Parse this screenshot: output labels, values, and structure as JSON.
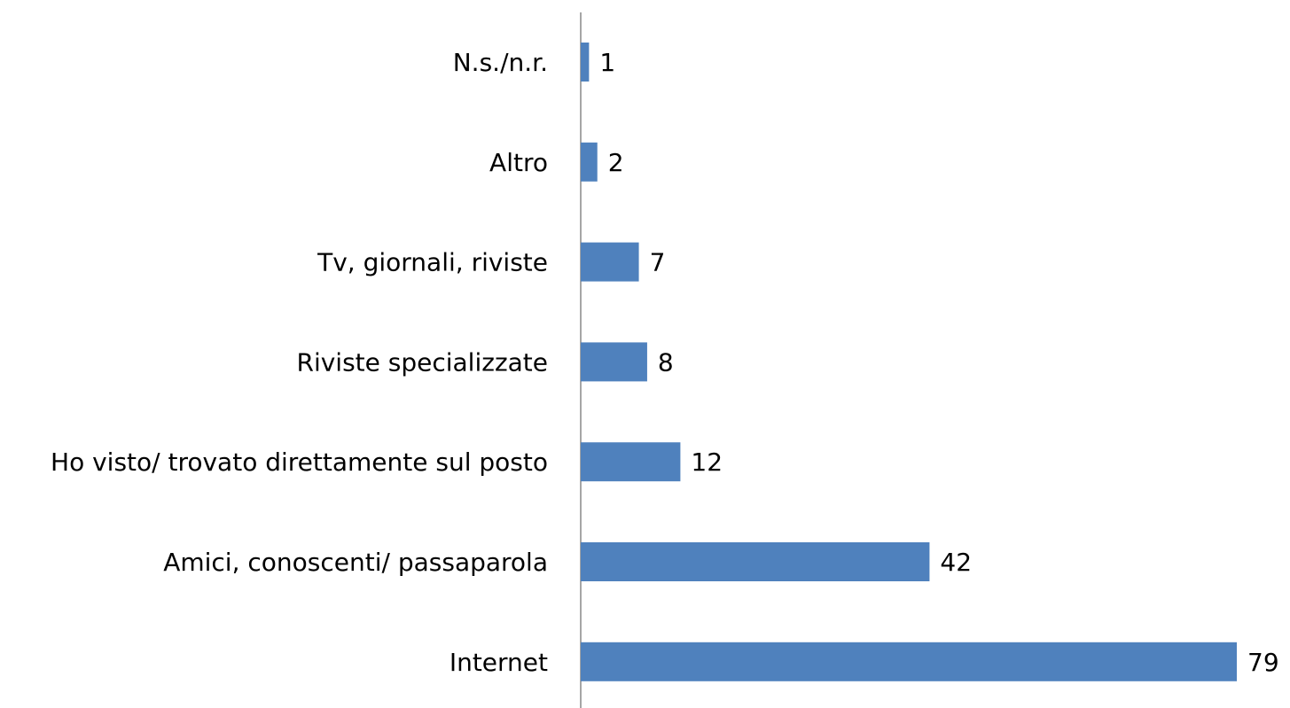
{
  "chart_data": {
    "type": "hbar",
    "categories": [
      "N.s./n.r.",
      "Altro",
      "Tv, giornali, riviste",
      "Riviste specializzate",
      "Ho visto/ trovato direttamente sul posto",
      "Amici, conoscenti/ passaparola",
      "Internet"
    ],
    "values": [
      1,
      2,
      7,
      8,
      12,
      42,
      79
    ],
    "color": "#4f81bd"
  }
}
